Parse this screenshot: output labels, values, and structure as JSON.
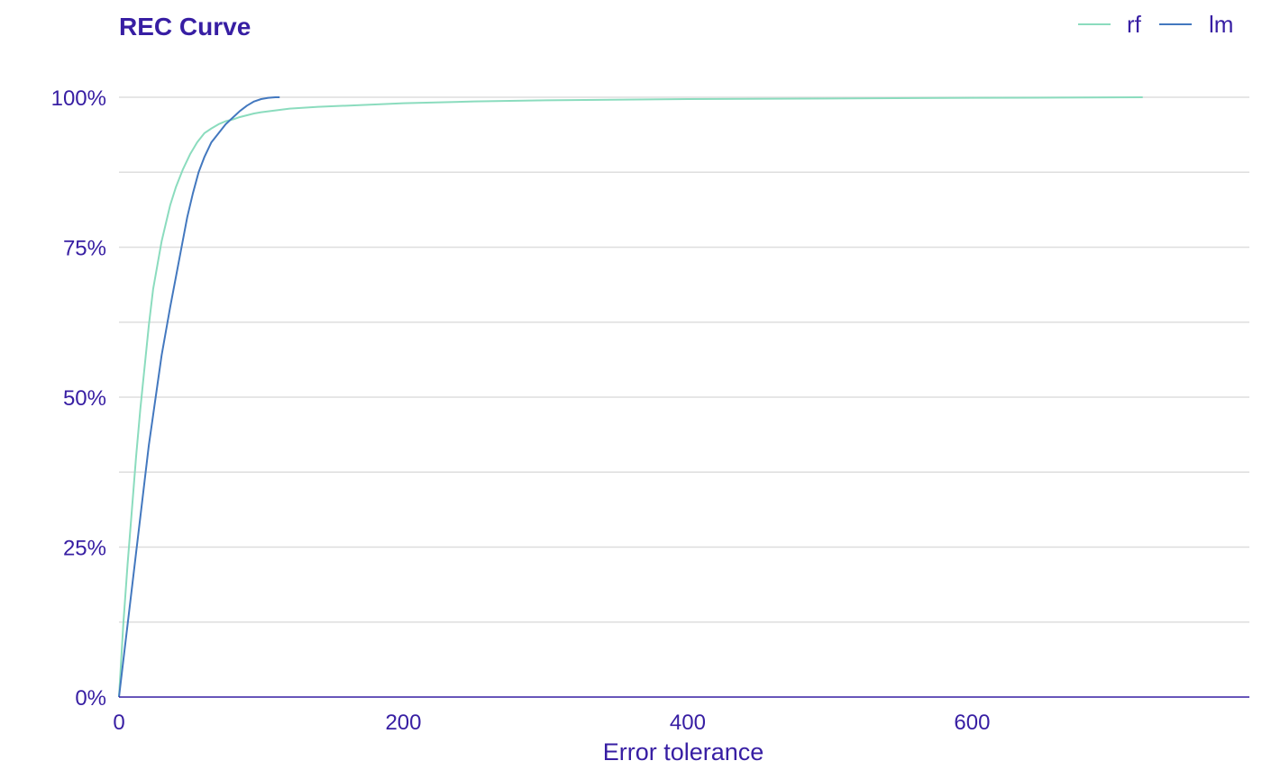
{
  "chart_data": {
    "type": "line",
    "title": "REC Curve",
    "xlabel": "Error tolerance",
    "ylabel": "",
    "xlim": [
      0,
      795
    ],
    "ylim": [
      0,
      1
    ],
    "x_ticks": [
      0,
      200,
      400,
      600
    ],
    "x_tick_labels": [
      "0",
      "200",
      "400",
      "600"
    ],
    "y_ticks": [
      0,
      0.25,
      0.5,
      0.75,
      1.0
    ],
    "y_tick_labels": [
      "0%",
      "25%",
      "50%",
      "75%",
      "100%"
    ],
    "y_minor_gridlines": [
      0.125,
      0.375,
      0.625,
      0.875
    ],
    "grid": true,
    "legend_position": "top-right",
    "colors": {
      "title": "#371ea3",
      "text": "#371ea3",
      "grid": "#dedede",
      "axis": "#371ea3"
    },
    "series": [
      {
        "name": "rf",
        "color": "#8bdcbe",
        "x": [
          0,
          3,
          6,
          9,
          12,
          15,
          18,
          21,
          24,
          27,
          30,
          33,
          36,
          40,
          45,
          50,
          55,
          60,
          65,
          70,
          75,
          80,
          85,
          90,
          95,
          100,
          110,
          120,
          140,
          160,
          200,
          250,
          300,
          400,
          500,
          600,
          720
        ],
        "y": [
          0,
          0.12,
          0.22,
          0.31,
          0.4,
          0.48,
          0.55,
          0.62,
          0.68,
          0.72,
          0.76,
          0.79,
          0.82,
          0.85,
          0.88,
          0.905,
          0.925,
          0.94,
          0.948,
          0.955,
          0.96,
          0.963,
          0.967,
          0.97,
          0.973,
          0.975,
          0.978,
          0.981,
          0.984,
          0.986,
          0.99,
          0.993,
          0.995,
          0.997,
          0.998,
          0.999,
          1.0
        ]
      },
      {
        "name": "lm",
        "color": "#4378bf",
        "x": [
          0,
          3,
          6,
          9,
          12,
          15,
          18,
          21,
          24,
          27,
          30,
          33,
          36,
          40,
          44,
          48,
          52,
          56,
          60,
          65,
          70,
          75,
          80,
          85,
          90,
          95,
          100,
          105,
          110,
          113
        ],
        "y": [
          0,
          0.06,
          0.12,
          0.18,
          0.24,
          0.3,
          0.36,
          0.42,
          0.47,
          0.52,
          0.57,
          0.61,
          0.65,
          0.7,
          0.75,
          0.8,
          0.84,
          0.875,
          0.9,
          0.925,
          0.94,
          0.955,
          0.966,
          0.977,
          0.986,
          0.993,
          0.997,
          0.999,
          1.0,
          1.0
        ]
      }
    ]
  }
}
